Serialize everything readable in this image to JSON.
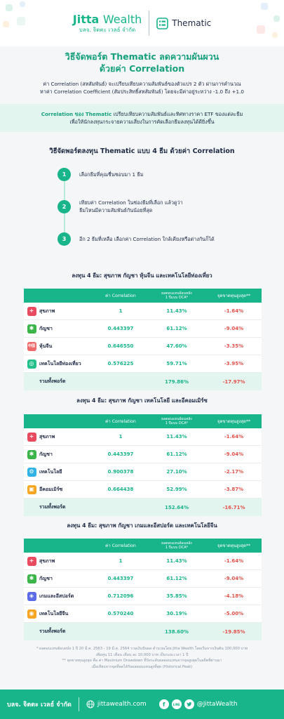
{
  "header": {
    "brand_name": "Jitta",
    "brand_suffix": "Wealth",
    "brand_sub": "บลจ. จิตตะ เวลธ์ จำกัด",
    "product": "Thematic"
  },
  "intro": {
    "title_line1": "วิธีจัดพอร์ต Thematic ลดความผันผวน",
    "title_line2": "ด้วยค่า Correlation",
    "text_line1": "ค่า Correlation (สหสัมพันธ์) จะเปรียบเทียบความสัมพันธ์ของตัวแปร 2 ตัว ผ่านการคำนวณ",
    "text_line2": "หาค่า Correlation Coefficient (สัมประสิทธิ์สหสัมพันธ์) โดยจะมีค่าอยู่ระหว่าง -1.0 ถึง +1.0"
  },
  "note": {
    "highlight": "Correlation ของ Thematic",
    "text_line1_rest": " เปรียบเทียบความสัมพันธ์และทิศทางราคา ETF ของแต่ละธีม",
    "text_line2": "เพื่อให้นักลงทุนกระจายความเสี่ยงในการคัดเลือกธีมลงทุนได้ดียิ่งขึ้น"
  },
  "steps": {
    "title": "วิธีจัดพอร์ตลงทุน Thematic แบบ 4 ธีม ด้วยค่า Correlation",
    "items": [
      {
        "num": "1",
        "line1": "เลือกธีมที่คุณชื่นชอบมา 1 ธีม",
        "line2": ""
      },
      {
        "num": "2",
        "line1": "เทียบค่า Correlation ในช่องธีมที่เลือก แล้วดูว่า",
        "line2": "ธีมไหนมีความสัมพันธ์กันน้อยที่สุด"
      },
      {
        "num": "3",
        "line1": "อีก 2 ธีมที่เหลือ เลือกค่า Correlation ใกล้เคียงหรือต่างกันก็ได้",
        "line2": ""
      }
    ]
  },
  "table_header": {
    "corr": "ค่า Correlation",
    "ret_line1": "ผลตอบแทนย้อนหลัง",
    "ret_line2": "1 ปีแบบ DCA*",
    "dd": "จุดขาดทุนสูงสุด**"
  },
  "portfolios": [
    {
      "title": "ลงทุน 4 ธีม: สุขภาพ กัญชา หุ้นจีน และเทคโนโลยีท่องเที่ยว",
      "rows": [
        {
          "icon": "health-cross-icon",
          "glyph": "+",
          "name": "สุขภาพ",
          "corr": "1",
          "ret": "11.43%",
          "dd": "-1.64%"
        },
        {
          "icon": "cannabis-leaf-icon",
          "glyph": "✱",
          "name": "กัญชา",
          "corr": "0.443397",
          "ret": "61.12%",
          "dd": "-9.04%"
        },
        {
          "icon": "china-flag-icon",
          "glyph": "中国",
          "name": "หุ้นจีน",
          "corr": "0.646550",
          "ret": "47.60%",
          "dd": "-3.35%"
        },
        {
          "icon": "travel-globe-icon",
          "glyph": "◎",
          "name": "เทคโนโลยีท่องเที่ยว",
          "corr": "0.576225",
          "ret": "59.71%",
          "dd": "-3.95%"
        }
      ],
      "total": {
        "name": "รวมทั้งพอร์ต",
        "ret": "179.86%",
        "dd": "-17.97%"
      }
    },
    {
      "title": "ลงทุน 4 ธีม: สุขภาพ กัญชา เทคโนโลยี และอีคอมเมิร์ซ",
      "rows": [
        {
          "icon": "health-cross-icon",
          "glyph": "+",
          "name": "สุขภาพ",
          "corr": "1",
          "ret": "11.43%",
          "dd": "-1.64%"
        },
        {
          "icon": "cannabis-leaf-icon",
          "glyph": "✱",
          "name": "กัญชา",
          "corr": "0.443397",
          "ret": "61.12%",
          "dd": "-9.04%"
        },
        {
          "icon": "technology-gear-icon",
          "glyph": "⚙",
          "name": "เทคโนโลยี",
          "corr": "0.900378",
          "ret": "27.10%",
          "dd": "-2.17%"
        },
        {
          "icon": "ecommerce-cart-icon",
          "glyph": "▣",
          "name": "อีคอมเมิร์ซ",
          "corr": "0.664438",
          "ret": "52.99%",
          "dd": "-3.87%"
        }
      ],
      "total": {
        "name": "รวมทั้งพอร์ต",
        "ret": "152.64%",
        "dd": "-16.71%"
      }
    },
    {
      "title": "ลงทุน 4 ธีม: สุขภาพ กัญชา เกมและอีสปอร์ต และเทคโนโลยีจีน",
      "rows": [
        {
          "icon": "health-cross-icon",
          "glyph": "+",
          "name": "สุขภาพ",
          "corr": "1",
          "ret": "11.43%",
          "dd": "-1.64%"
        },
        {
          "icon": "cannabis-leaf-icon",
          "glyph": "✱",
          "name": "กัญชา",
          "corr": "0.443397",
          "ret": "61.12%",
          "dd": "-9.04%"
        },
        {
          "icon": "gamepad-icon",
          "glyph": "◈",
          "name": "เกมและอีสปอร์ต",
          "corr": "0.712096",
          "ret": "35.85%",
          "dd": "-4.18%"
        },
        {
          "icon": "china-tech-icon",
          "glyph": "◉",
          "name": "เทคโนโลยีจีน",
          "corr": "0.570240",
          "ret": "30.19%",
          "dd": "-5.00%"
        }
      ],
      "total": {
        "name": "รวมทั้งพอร์ต",
        "ret": "138.60%",
        "dd": "-19.85%"
      }
    }
  ],
  "footnote": {
    "line1": "* ผลตอบแทนย้อนหลัง 1 ปี 20 มี.ค. 2563 - 19 มี.ค. 2564 รวมเงินปันผล คำนวณโดย Jitta Wealth โดยเริ่มจากเงินต้น 100,000 บาท",
    "line2": "เพิ่มทุน 11 เดือน เดือน ละ 10,000 บาท เป็นระยะเวลา 1 ปี",
    "line3": "** จุดขาดทุนสูงสุด คือ ค่า Maximum Drawdown ที่วัดระดับผลตอบแทนจากจุดสูงสุดในอดีตที่ผ่านมา",
    "line4": "เมื่อเทียบจากจุดที่ลดได้รับผลตอบแทนสูงที่สุด (Historical Peak)"
  },
  "footer": {
    "company": "บลจ. จิตตะ เวลธ์ จำกัด",
    "website": "jittawealth.com",
    "facebook": "f",
    "line": "LINE",
    "twitter_handle": "@JittaWealth"
  }
}
